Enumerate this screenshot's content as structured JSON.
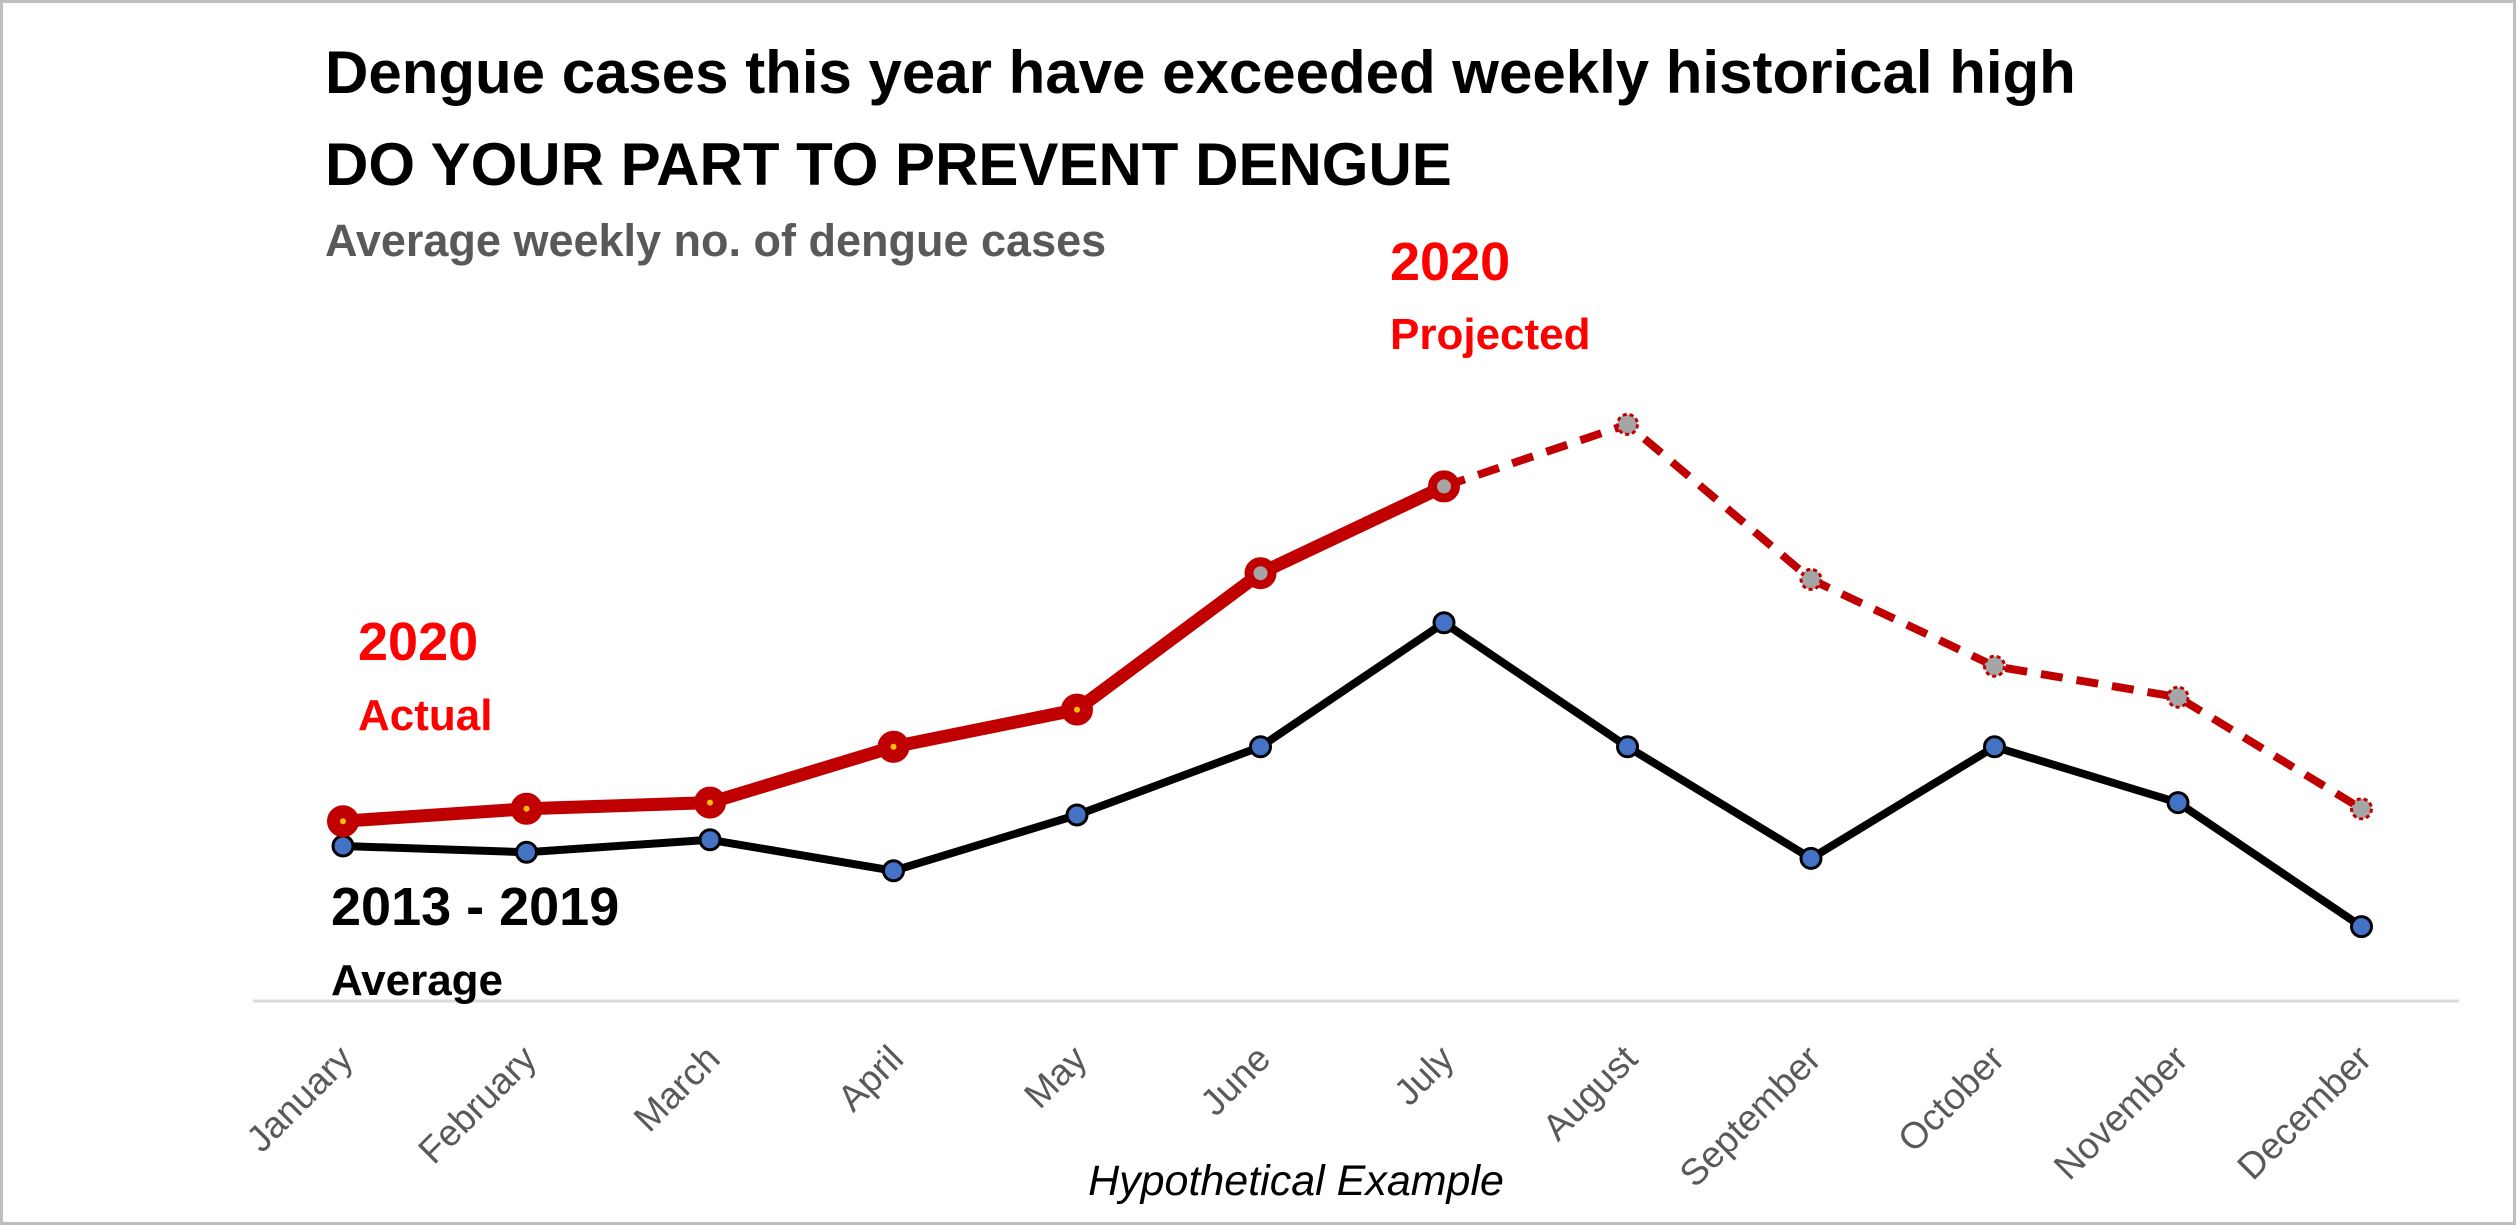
{
  "chart_data": {
    "type": "line",
    "title": "Dengue cases this year have exceeded weekly historical high",
    "subtitle": "DO YOUR PART TO PREVENT DENGUE",
    "ylabel": "Average weekly no. of dengue cases",
    "xlabel": "Hypothetical Example",
    "categories": [
      "January",
      "February",
      "March",
      "April",
      "May",
      "June",
      "July",
      "August",
      "September",
      "October",
      "November",
      "December"
    ],
    "ylim": [
      0,
      100
    ],
    "grid": false,
    "legend": "inline labels",
    "series": [
      {
        "name": "2020 Actual",
        "label_line1": "2020",
        "label_line2": "Actual",
        "color": "#c00000",
        "label_color": "#ff0000",
        "style": "solid-thick",
        "values": [
          29,
          31,
          32,
          41,
          47,
          69,
          83,
          null,
          null,
          null,
          null,
          null
        ]
      },
      {
        "name": "2020 Projected",
        "label_line1": "2020",
        "label_line2": "Projected",
        "color": "#c00000",
        "label_color": "#ff0000",
        "style": "dashed",
        "values": [
          null,
          null,
          null,
          null,
          null,
          null,
          83,
          93,
          68,
          54,
          49,
          31
        ]
      },
      {
        "name": "2013 - 2019 Average",
        "label_line1": "2013 - 2019",
        "label_line2": "Average",
        "color": "#000000",
        "label_color": "#000000",
        "style": "solid",
        "values": [
          25,
          24,
          26,
          21,
          30,
          41,
          61,
          41,
          23,
          41,
          32,
          12
        ]
      }
    ],
    "marker_fill_actual": "#ffc000",
    "marker_fill_projected": "#a5a5a5",
    "marker_fill_average": "#4472c4",
    "axis_color": "#d9d9d9"
  }
}
